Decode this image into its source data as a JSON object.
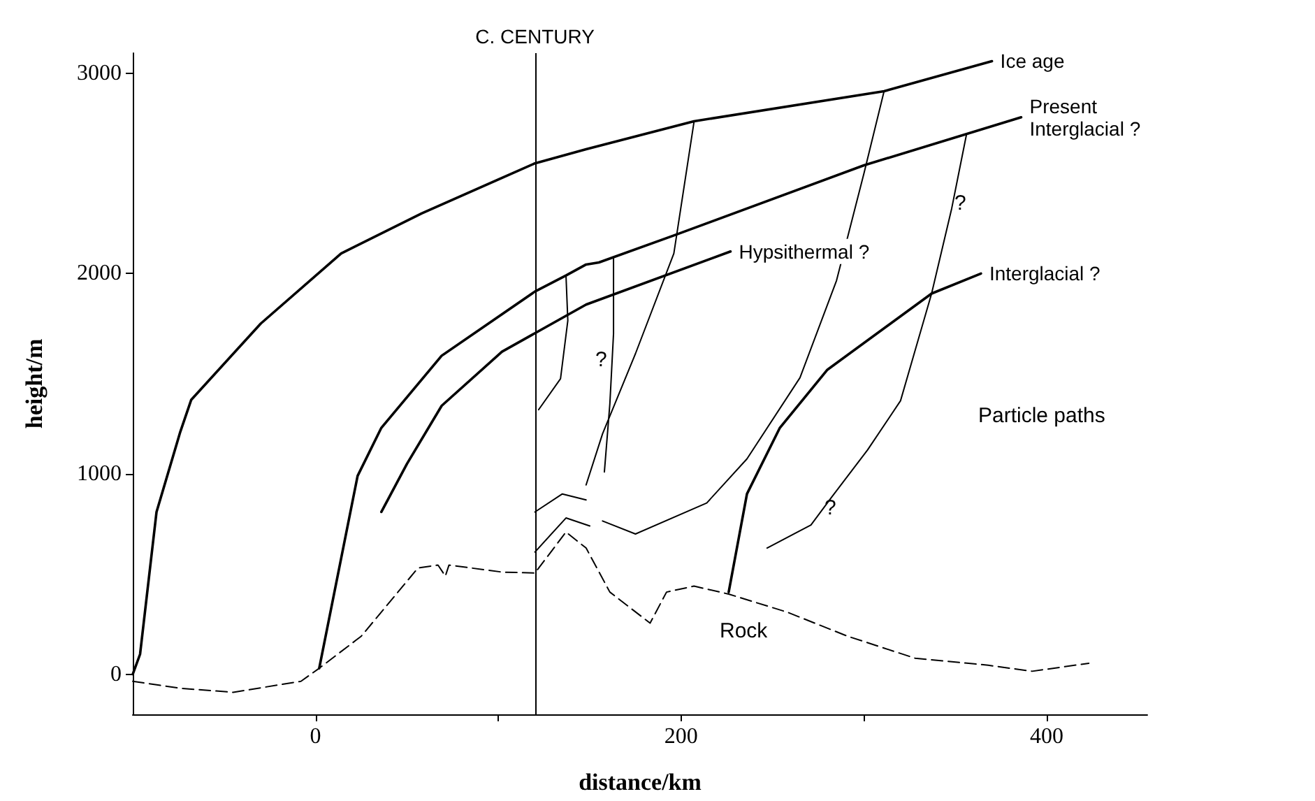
{
  "chart_data": {
    "type": "line",
    "xlabel": "distance/km",
    "ylabel": "height/m",
    "xlim": [
      -100,
      455
    ],
    "ylim": [
      -200,
      3100
    ],
    "xticks": [
      0,
      {
        "value": 100,
        "label": null
      },
      200,
      {
        "value": 300,
        "label": null
      },
      400
    ],
    "yticks": [
      0,
      1000,
      2000,
      3000
    ],
    "grid": false,
    "marker": "none",
    "series": [
      {
        "name": "Ice age",
        "color": "#000000",
        "x": [
          -100,
          -96,
          -87,
          -74,
          -68,
          -30,
          14,
          58,
          120,
          148,
          207,
          311,
          370
        ],
        "values": [
          0,
          100,
          810,
          1210,
          1370,
          1750,
          2100,
          2300,
          2550,
          2620,
          2760,
          2910,
          3060
        ]
      },
      {
        "name": "Present Interglacial ?",
        "color": "#000000",
        "x": [
          2,
          23,
          36,
          69,
          120,
          137,
          148,
          155,
          196,
          300,
          386
        ],
        "values": [
          30,
          990,
          1230,
          1590,
          1910,
          1990,
          2045,
          2055,
          2190,
          2540,
          2780
        ]
      },
      {
        "name": "Hypsithermal ?",
        "color": "#000000",
        "x": [
          36,
          50,
          69,
          102,
          148,
          227
        ],
        "values": [
          810,
          1050,
          1340,
          1610,
          1845,
          2110
        ]
      },
      {
        "name": "Interglacial ?",
        "color": "#000000",
        "x": [
          226,
          236,
          254,
          280,
          337,
          364
        ],
        "values": [
          410,
          900,
          1230,
          1520,
          1900,
          2000
        ]
      },
      {
        "color": "#000000",
        "line_style": "dashed",
        "x": [
          -100,
          -74,
          -45,
          -8,
          2,
          25,
          56,
          67,
          71,
          73,
          102,
          120,
          137,
          148,
          161,
          183,
          192,
          207,
          226,
          258,
          291,
          328,
          368,
          392,
          423
        ],
        "values": [
          -35,
          -70,
          -90,
          -35,
          30,
          190,
          530,
          545,
          490,
          545,
          510,
          505,
          710,
          630,
          410,
          255,
          410,
          440,
          400,
          310,
          190,
          80,
          45,
          15,
          55
        ]
      },
      {
        "color": "#000000",
        "x": [
          207,
          196,
          175,
          157,
          148
        ],
        "values": [
          2755,
          2100,
          1600,
          1200,
          945
        ]
      },
      {
        "color": "#000000",
        "x": [
          311,
          300,
          285,
          265,
          236,
          214,
          175,
          157
        ],
        "values": [
          2910,
          2500,
          1965,
          1480,
          1075,
          855,
          700,
          765
        ]
      },
      {
        "color": "#000000",
        "x": [
          356,
          348,
          337,
          320,
          302,
          282,
          271,
          247
        ],
        "values": [
          2690,
          2325,
          1900,
          1365,
          1120,
          880,
          745,
          630
        ]
      },
      {
        "color": "#000000",
        "x": [
          137,
          138,
          134,
          122
        ],
        "values": [
          1990,
          1765,
          1475,
          1320
        ]
      },
      {
        "color": "#000000",
        "x": [
          163,
          163,
          161,
          158
        ],
        "values": [
          2075,
          1700,
          1350,
          1010
        ]
      },
      {
        "color": "#000000",
        "x": [
          120,
          135,
          148
        ],
        "values": [
          810,
          900,
          870
        ]
      },
      {
        "color": "#000000",
        "x": [
          120,
          137,
          150
        ],
        "values": [
          610,
          780,
          740
        ]
      }
    ],
    "ref_lines": [
      {
        "axis": "x",
        "value": 120,
        "label": "C. CENTURY",
        "color": "#000000"
      }
    ],
    "annotations": [
      "?",
      "?",
      "?",
      "Rock",
      "Particle paths"
    ]
  }
}
